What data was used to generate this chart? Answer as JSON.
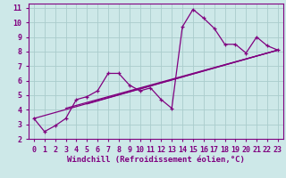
{
  "title": "",
  "xlabel": "Windchill (Refroidissement éolien,°C)",
  "ylabel": "",
  "bg_color": "#cde8e8",
  "line_color": "#800080",
  "grid_color": "#aacccc",
  "main_x": [
    0,
    1,
    2,
    3,
    4,
    5,
    6,
    7,
    8,
    9,
    10,
    11,
    12,
    13,
    14,
    15,
    16,
    17,
    18,
    19,
    20,
    21,
    22,
    23
  ],
  "main_y": [
    3.4,
    2.5,
    2.9,
    3.4,
    4.7,
    4.9,
    5.3,
    6.5,
    6.5,
    5.7,
    5.3,
    5.5,
    4.7,
    4.1,
    9.7,
    10.9,
    10.3,
    9.6,
    8.5,
    8.5,
    7.9,
    9.0,
    8.4,
    8.1
  ],
  "trend1_x": [
    0,
    23
  ],
  "trend1_y": [
    3.4,
    8.1
  ],
  "trend2_x": [
    3,
    23
  ],
  "trend2_y": [
    4.1,
    8.1
  ],
  "trend3_x": [
    5,
    23
  ],
  "trend3_y": [
    4.4,
    8.1
  ],
  "xlim": [
    -0.5,
    23.5
  ],
  "ylim": [
    2.0,
    11.3
  ],
  "yticks": [
    2,
    3,
    4,
    5,
    6,
    7,
    8,
    9,
    10,
    11
  ],
  "xticks": [
    0,
    1,
    2,
    3,
    4,
    5,
    6,
    7,
    8,
    9,
    10,
    11,
    12,
    13,
    14,
    15,
    16,
    17,
    18,
    19,
    20,
    21,
    22,
    23
  ],
  "xlabel_fontsize": 6.5,
  "tick_fontsize": 6.0,
  "spine_color": "#800080"
}
